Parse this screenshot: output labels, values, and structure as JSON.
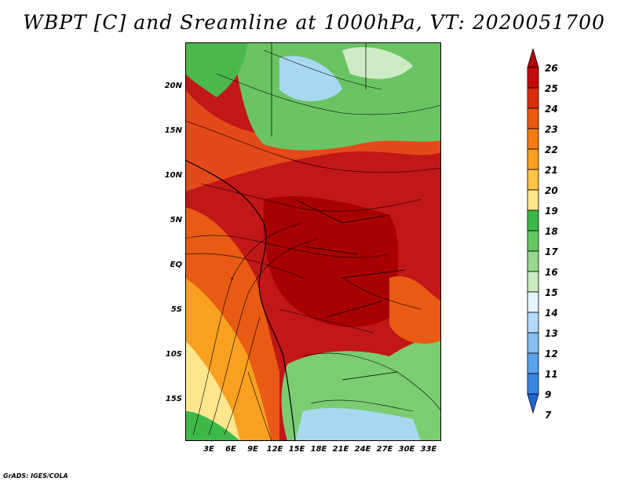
{
  "title": "WBPT [C] and Sreamline at 1000hPa, VT: 2020051700",
  "credit": "GrADS: IGES/COLA",
  "map": {
    "lat_ticks": [
      "20N",
      "15N",
      "10N",
      "5N",
      "EQ",
      "5S",
      "10S",
      "15S"
    ],
    "lon_ticks": [
      "3E",
      "6E",
      "9E",
      "12E",
      "15E",
      "18E",
      "21E",
      "24E",
      "27E",
      "30E",
      "33E"
    ]
  },
  "colorbar": {
    "labels": [
      "26",
      "25",
      "24",
      "23",
      "22",
      "21",
      "20",
      "19",
      "18",
      "17",
      "16",
      "15",
      "14",
      "13",
      "12",
      "11",
      "9",
      "7"
    ],
    "colors": [
      "#b30000",
      "#c50a0a",
      "#d92e0d",
      "#eb5a12",
      "#f47c15",
      "#f9a021",
      "#fcc346",
      "#fde68c",
      "#3fb84a",
      "#63c75f",
      "#94d98c",
      "#c8ebc2",
      "#e6f4fb",
      "#b4d9f6",
      "#86bff0",
      "#5aa3ea",
      "#3a86e3",
      "#1f66d6"
    ]
  }
}
